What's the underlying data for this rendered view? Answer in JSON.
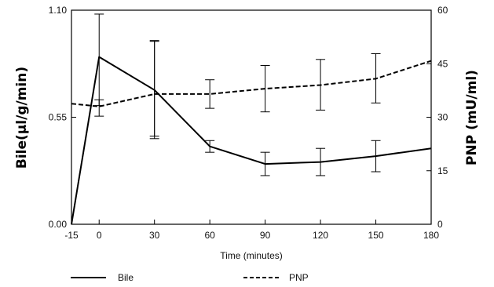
{
  "chart_data": {
    "type": "line",
    "title": "",
    "xlabel": "Time (minutes)",
    "ylabel_left": "Bile(μl/g/min)",
    "ylabel_right": "PNP  (mU/ml)",
    "x": [
      -15,
      0,
      30,
      60,
      90,
      120,
      150,
      180
    ],
    "x_ticks": [
      "-15",
      "0",
      "30",
      "60",
      "90",
      "120",
      "150",
      "180"
    ],
    "xlim": [
      -15,
      180
    ],
    "ylim_left": [
      0,
      1.1
    ],
    "ylim_right": [
      0,
      60
    ],
    "y_ticks_left": [
      "0.00",
      "0.55",
      "1.10"
    ],
    "y_ticks_right": [
      "0",
      "15",
      "30",
      "45",
      "60"
    ],
    "grid": false,
    "legend_position": "bottom",
    "series": [
      {
        "name": "Bile",
        "axis": "left",
        "style": "solid",
        "values": [
          0.0,
          0.86,
          0.69,
          0.4,
          0.31,
          0.32,
          0.35,
          0.39
        ],
        "error_low": [
          null,
          0.61,
          0.44,
          0.37,
          0.25,
          0.25,
          0.27,
          null
        ],
        "error_high": [
          null,
          1.08,
          0.94,
          0.43,
          0.37,
          0.39,
          0.43,
          null
        ]
      },
      {
        "name": "PNP",
        "axis": "right",
        "style": "dashed",
        "values": [
          33.8,
          33.0,
          36.5,
          36.5,
          38.0,
          39.0,
          40.8,
          45.8
        ],
        "error_low": [
          null,
          30.3,
          24.7,
          32.5,
          31.5,
          32.0,
          34.0,
          null
        ],
        "error_high": [
          null,
          34.9,
          51.5,
          40.5,
          44.5,
          46.2,
          47.8,
          null
        ]
      }
    ]
  }
}
